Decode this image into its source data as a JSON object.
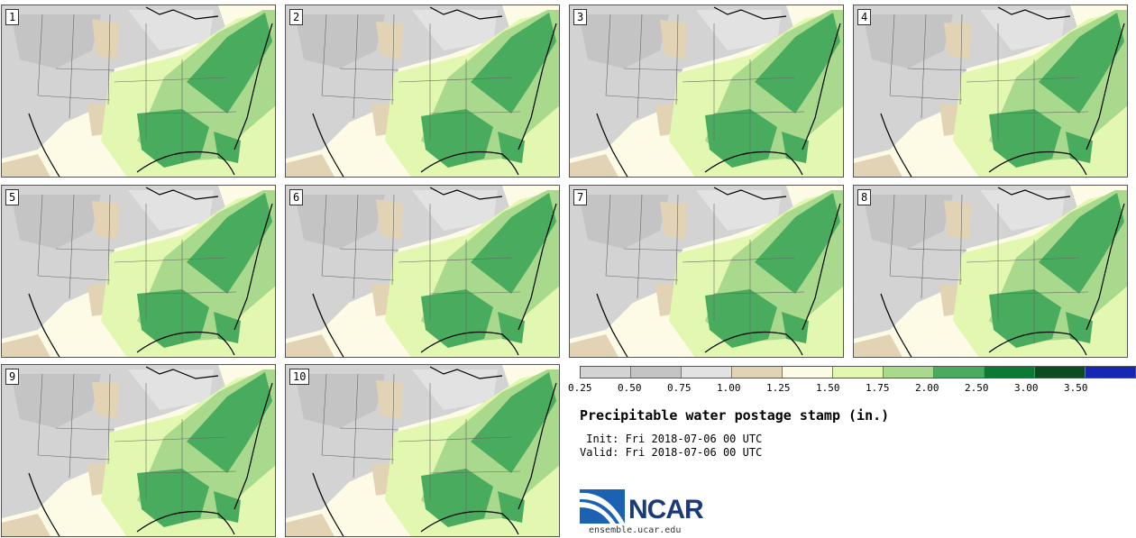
{
  "panels": [
    "1",
    "2",
    "3",
    "4",
    "5",
    "6",
    "7",
    "8",
    "9",
    "10"
  ],
  "colorbar": {
    "colors": [
      "#d3d3d3",
      "#c4c4c4",
      "#e2e2e2",
      "#e2d3b4",
      "#fdfbe6",
      "#e2f7b0",
      "#a9d98c",
      "#49ab5e",
      "#0c7a34",
      "#0b4d20",
      "#1428b4"
    ],
    "ticks": [
      "0.25",
      "0.50",
      "0.75",
      "1.00",
      "1.25",
      "1.50",
      "1.75",
      "2.00",
      "2.50",
      "3.00",
      "3.50"
    ]
  },
  "title": "Precipitable water postage stamp (in.)",
  "init": " Init: Fri 2018-07-06 00 UTC",
  "valid": "Valid: Fri 2018-07-06 00 UTC",
  "logo": {
    "name": "NCAR",
    "url": "ensemble.ucar.edu"
  }
}
